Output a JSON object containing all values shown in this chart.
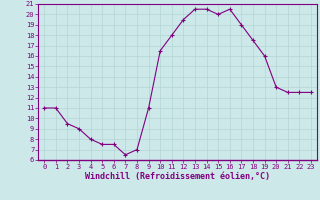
{
  "x": [
    0,
    1,
    2,
    3,
    4,
    5,
    6,
    7,
    8,
    9,
    10,
    11,
    12,
    13,
    14,
    15,
    16,
    17,
    18,
    19,
    20,
    21,
    22,
    23
  ],
  "y": [
    11,
    11,
    9.5,
    9,
    8,
    7.5,
    7.5,
    6.5,
    7,
    11,
    16.5,
    18,
    19.5,
    20.5,
    20.5,
    20,
    20.5,
    19,
    17.5,
    16,
    13,
    12.5,
    12.5,
    12.5
  ],
  "line_color": "#800080",
  "marker": "+",
  "marker_size": 3,
  "linewidth": 0.8,
  "xlabel": "Windchill (Refroidissement éolien,°C)",
  "xlabel_fontsize": 6,
  "bg_color": "#cce8e8",
  "grid_color": "#b0d0d0",
  "ylim": [
    6,
    21
  ],
  "xlim": [
    -0.5,
    23.5
  ],
  "yticks": [
    6,
    7,
    8,
    9,
    10,
    11,
    12,
    13,
    14,
    15,
    16,
    17,
    18,
    19,
    20,
    21
  ],
  "xticks": [
    0,
    1,
    2,
    3,
    4,
    5,
    6,
    7,
    8,
    9,
    10,
    11,
    12,
    13,
    14,
    15,
    16,
    17,
    18,
    19,
    20,
    21,
    22,
    23
  ],
  "tick_fontsize": 5,
  "spine_color": "#800080",
  "axis_line_color": "#800080"
}
